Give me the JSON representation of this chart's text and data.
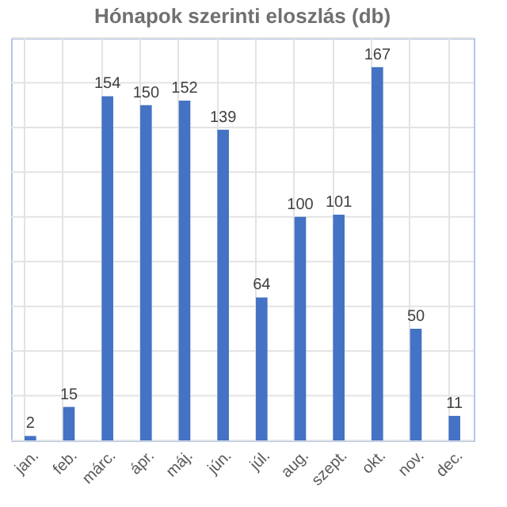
{
  "chart_data": {
    "type": "bar",
    "title": "Hónapok szerinti eloszlás (db)",
    "categories": [
      "jan.",
      "feb.",
      "márc.",
      "ápr.",
      "máj.",
      "jún.",
      "júl.",
      "aug.",
      "szept.",
      "okt.",
      "nov.",
      "dec."
    ],
    "values": [
      2,
      15,
      154,
      150,
      152,
      139,
      64,
      100,
      101,
      167,
      50,
      11
    ],
    "color": "#4472c4",
    "ylim": [
      0,
      180
    ],
    "yticks": [
      {
        "value": 0,
        "label": null
      },
      {
        "value": 20,
        "label": null
      },
      {
        "value": 40,
        "label": null
      },
      {
        "value": 60,
        "label": null
      },
      {
        "value": 80,
        "label": null
      },
      {
        "value": 100,
        "label": null
      },
      {
        "value": 120,
        "label": null
      },
      {
        "value": 140,
        "label": null
      },
      {
        "value": 160,
        "label": null
      },
      {
        "value": 180,
        "label": null
      }
    ],
    "tick_labels": "x",
    "grid": true,
    "data_labels": true
  }
}
